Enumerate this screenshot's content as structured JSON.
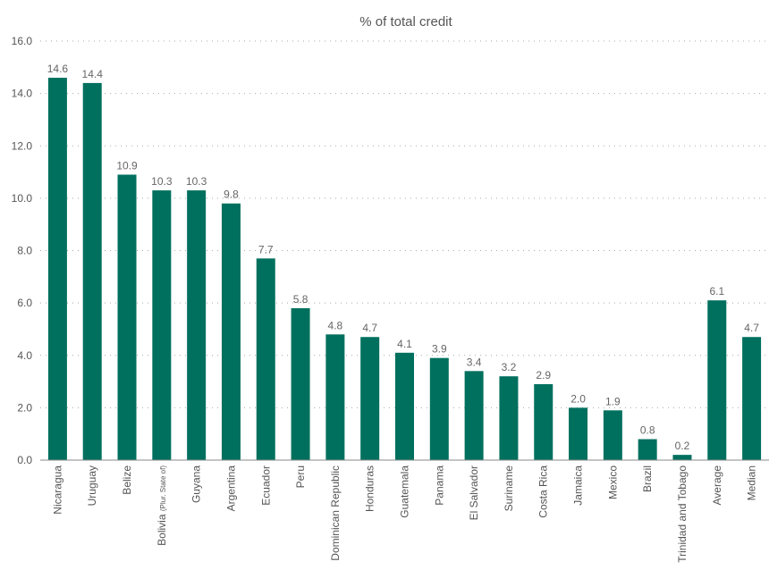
{
  "chart_data": {
    "type": "bar",
    "title": "% of total credit",
    "xlabel": "",
    "ylabel": "",
    "ylim": [
      0,
      16
    ],
    "yticks": [
      "0.0",
      "2.0",
      "4.0",
      "6.0",
      "8.0",
      "10.0",
      "12.0",
      "14.0",
      "16.0"
    ],
    "grid": true,
    "categories": [
      "Nicaragua",
      "Uruguay",
      "Belize",
      "Bolivia (Plur. State of)",
      "Guyana",
      "Argentina",
      "Ecuador",
      "Peru",
      "Dominican Republic",
      "Honduras",
      "Guatemala",
      "Panama",
      "El Salvador",
      "Suriname",
      "Costa Rica",
      "Jamaica",
      "Mexico",
      "Brazil",
      "Trinidad and Tobago",
      "Average",
      "Median"
    ],
    "values": [
      14.6,
      14.4,
      10.9,
      10.3,
      10.3,
      9.8,
      7.7,
      5.8,
      4.8,
      4.7,
      4.1,
      3.9,
      3.4,
      3.2,
      2.9,
      2.0,
      1.9,
      0.8,
      0.2,
      6.1,
      4.7
    ],
    "data_labels": [
      "14.6",
      "14.4",
      "10.9",
      "10.3",
      "10.3",
      "9.8",
      "7.7",
      "5.8",
      "4.8",
      "4.7",
      "4.1",
      "3.9",
      "3.4",
      "3.2",
      "2.9",
      "2.0",
      "1.9",
      "0.8",
      "0.2",
      "6.1",
      "4.7"
    ],
    "bar_color": "#00705e"
  }
}
